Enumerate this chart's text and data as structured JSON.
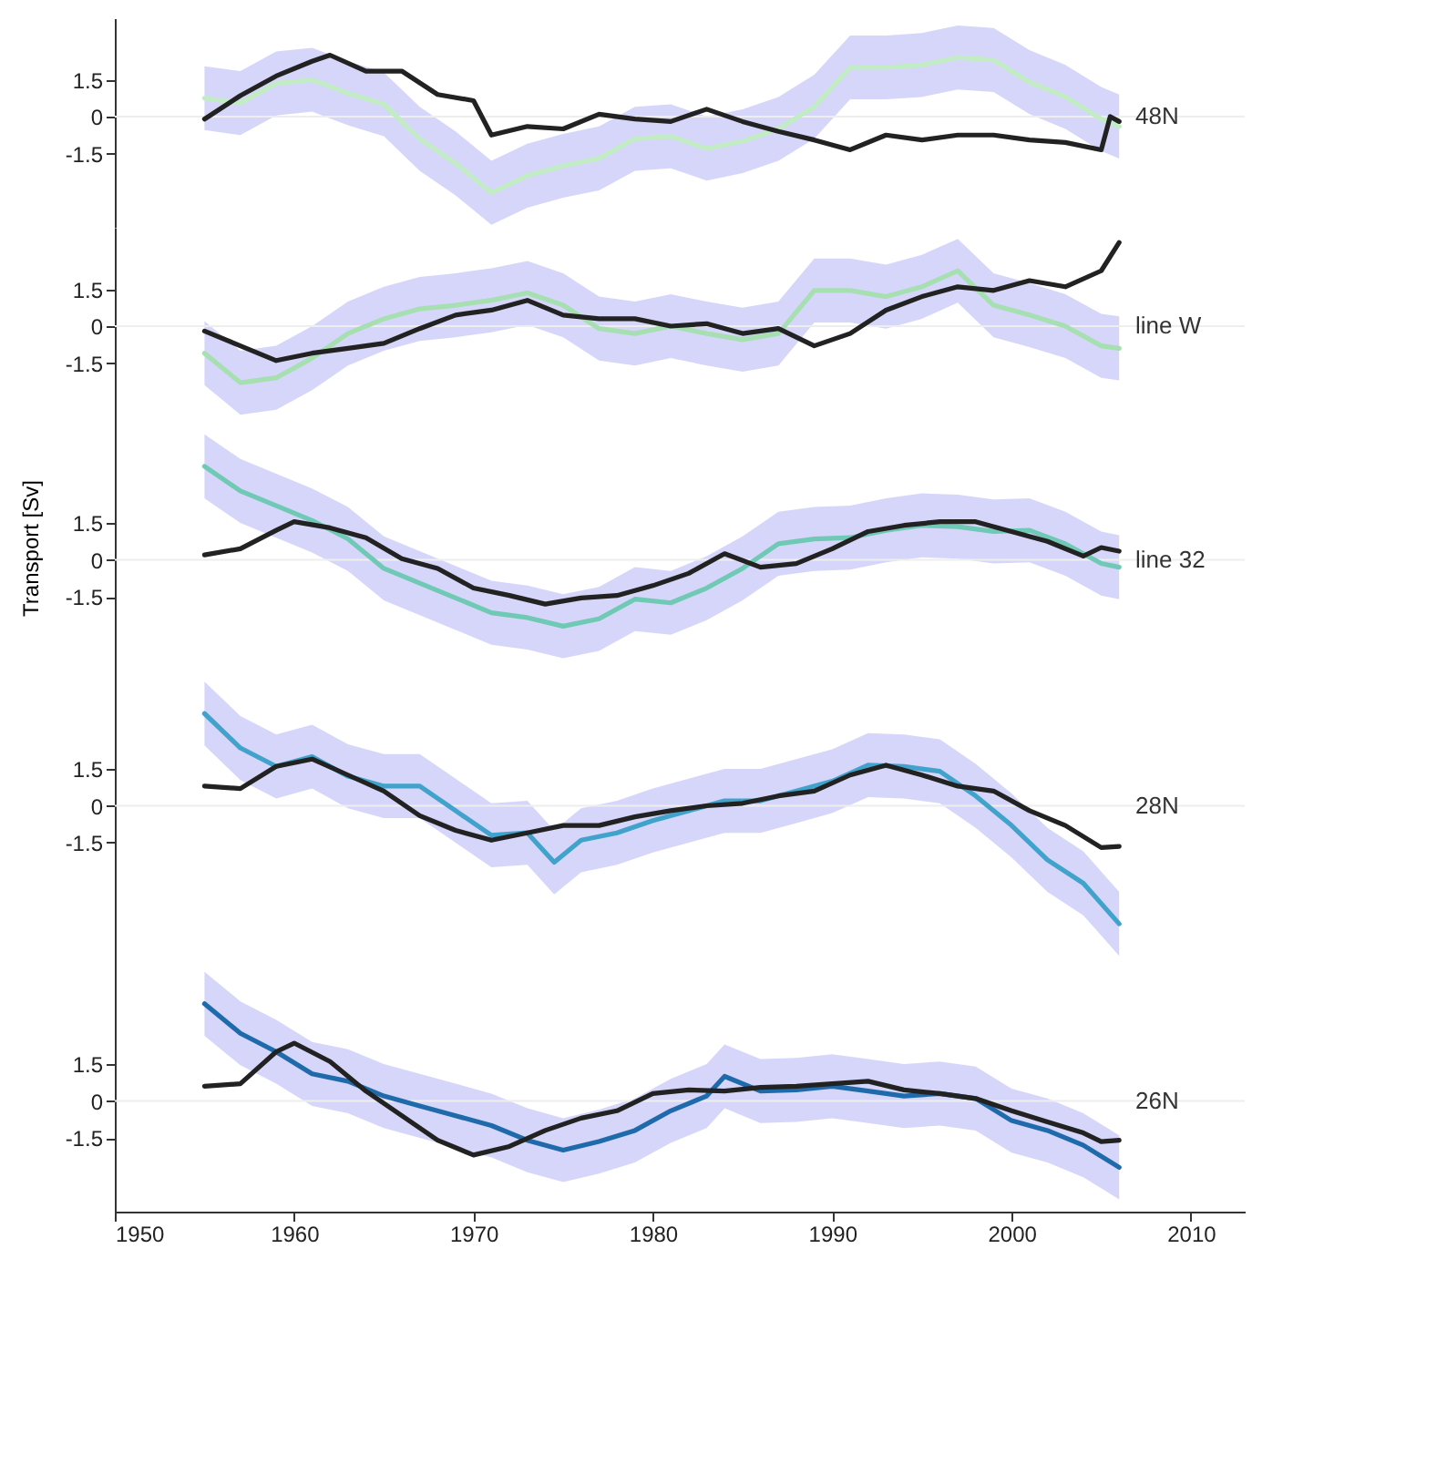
{
  "chart_data": [
    {
      "type": "line",
      "annotations": [
        "48N"
      ],
      "xlim": [
        1950,
        2013
      ],
      "xticks": [
        1950,
        1960,
        1970,
        1980,
        1990,
        2000,
        2010
      ],
      "ylim": [
        -4.5,
        4
      ],
      "yticks": [
        -1.5,
        0,
        1.5
      ],
      "tick_labels": "y",
      "ref_lines": [
        {
          "axis": "y",
          "value": 0,
          "color": "#eeeeee"
        }
      ],
      "series": [
        {
          "color": "#c2ecc4",
          "x": [
            1955,
            1957,
            1959,
            1961,
            1963,
            1965,
            1967,
            1969,
            1971,
            1973,
            1975,
            1977,
            1979,
            1981,
            1983,
            1985,
            1987,
            1989,
            1991,
            1993,
            1995,
            1997,
            1999,
            2001,
            2003,
            2005,
            2006
          ],
          "values": [
            0.75,
            0.55,
            1.35,
            1.5,
            0.95,
            0.5,
            -0.9,
            -1.9,
            -3.1,
            -2.4,
            -2.0,
            -1.7,
            -0.9,
            -0.8,
            -1.3,
            -1.0,
            -0.5,
            0.4,
            2.0,
            2.0,
            2.1,
            2.4,
            2.3,
            1.4,
            0.8,
            -0.1,
            -0.4
          ],
          "lower": [
            -0.55,
            -0.75,
            0.05,
            0.2,
            -0.35,
            -0.8,
            -2.2,
            -3.2,
            -4.4,
            -3.7,
            -3.3,
            -3.0,
            -2.2,
            -2.1,
            -2.6,
            -2.3,
            -1.8,
            -0.9,
            0.7,
            0.7,
            0.8,
            1.1,
            1.0,
            0.1,
            -0.5,
            -1.4,
            -1.7
          ],
          "upper": [
            2.05,
            1.85,
            2.65,
            2.8,
            2.25,
            1.8,
            0.4,
            -0.6,
            -1.8,
            -1.1,
            -0.7,
            -0.4,
            0.4,
            0.5,
            0.0,
            0.3,
            0.8,
            1.7,
            3.3,
            3.3,
            3.4,
            3.7,
            3.6,
            2.7,
            2.1,
            1.2,
            0.9
          ]
        },
        {
          "color": "#222222",
          "x": [
            1955,
            1957,
            1959,
            1961,
            1962,
            1964,
            1966,
            1968,
            1970,
            1971,
            1973,
            1975,
            1977,
            1979,
            1981,
            1983,
            1985,
            1987,
            1989,
            1991,
            1993,
            1995,
            1997,
            1999,
            2001,
            2003,
            2005,
            2005.5,
            2006
          ],
          "values": [
            -0.1,
            0.85,
            1.65,
            2.25,
            2.5,
            1.85,
            1.85,
            0.9,
            0.65,
            -0.75,
            -0.4,
            -0.5,
            0.1,
            -0.1,
            -0.2,
            0.3,
            -0.2,
            -0.6,
            -0.95,
            -1.35,
            -0.75,
            -0.95,
            -0.75,
            -0.75,
            -0.95,
            -1.05,
            -1.35,
            0,
            -0.2
          ]
        }
      ]
    },
    {
      "type": "line",
      "annotations": [
        "line W"
      ],
      "xlim": [
        1950,
        2013
      ],
      "xticks": [
        1950,
        1960,
        1970,
        1980,
        1990,
        2000,
        2010
      ],
      "ylim": [
        -4,
        4
      ],
      "yticks": [
        -1.5,
        0,
        1.5
      ],
      "tick_labels": "y",
      "ref_lines": [
        {
          "axis": "y",
          "value": 0,
          "color": "#eeeeee"
        }
      ],
      "series": [
        {
          "color": "#a6dfb0",
          "x": [
            1955,
            1957,
            1959,
            1961,
            1963,
            1965,
            1967,
            1969,
            1971,
            1973,
            1975,
            1977,
            1979,
            1981,
            1983,
            1985,
            1987,
            1989,
            1991,
            1993,
            1995,
            1997,
            1999,
            2001,
            2003,
            2005,
            2006
          ],
          "values": [
            -1.1,
            -2.3,
            -2.1,
            -1.3,
            -0.3,
            0.3,
            0.7,
            0.85,
            1.05,
            1.35,
            0.85,
            -0.1,
            -0.3,
            0,
            -0.3,
            -0.55,
            -0.3,
            1.45,
            1.45,
            1.2,
            1.6,
            2.25,
            0.85,
            0.45,
            0,
            -0.8,
            -0.9
          ],
          "lower": [
            -2.4,
            -3.6,
            -3.4,
            -2.6,
            -1.6,
            -1.0,
            -0.6,
            -0.45,
            -0.25,
            0.05,
            -0.45,
            -1.4,
            -1.6,
            -1.3,
            -1.6,
            -1.85,
            -1.6,
            0.15,
            0.15,
            -0.1,
            0.3,
            0.95,
            -0.45,
            -0.85,
            -1.3,
            -2.1,
            -2.2
          ],
          "upper": [
            0.2,
            -1.0,
            -0.8,
            0.0,
            1.0,
            1.6,
            2.0,
            2.15,
            2.35,
            2.65,
            2.15,
            1.2,
            1.0,
            1.3,
            1.0,
            0.75,
            1.0,
            2.75,
            2.75,
            2.5,
            2.9,
            3.55,
            2.15,
            1.75,
            1.3,
            0.5,
            0.4
          ]
        },
        {
          "color": "#222222",
          "x": [
            1955,
            1957,
            1959,
            1961,
            1963,
            1965,
            1967,
            1969,
            1971,
            1973,
            1975,
            1977,
            1979,
            1981,
            1983,
            1985,
            1987,
            1989,
            1991,
            1993,
            1995,
            1997,
            1999,
            2001,
            2003,
            2005,
            2006
          ],
          "values": [
            -0.2,
            -0.8,
            -1.4,
            -1.1,
            -0.9,
            -0.7,
            -0.1,
            0.45,
            0.65,
            1.05,
            0.45,
            0.3,
            0.3,
            0,
            0.1,
            -0.3,
            -0.1,
            -0.8,
            -0.3,
            0.65,
            1.2,
            1.6,
            1.45,
            1.85,
            1.6,
            2.25,
            3.4
          ]
        }
      ]
    },
    {
      "type": "line",
      "ylabel": "Transport [Sv]",
      "annotations": [
        "line 32"
      ],
      "xlim": [
        1950,
        2013
      ],
      "xticks": [
        1950,
        1960,
        1970,
        1980,
        1990,
        2000,
        2010
      ],
      "ylim": [
        -4.5,
        5.5
      ],
      "yticks": [
        -1.5,
        0,
        1.5
      ],
      "tick_labels": "y",
      "ref_lines": [
        {
          "axis": "y",
          "value": 0,
          "color": "#eeeeee"
        }
      ],
      "series": [
        {
          "color": "#6fc9b5",
          "x": [
            1955,
            1957,
            1959,
            1961,
            1963,
            1965,
            1967,
            1969,
            1971,
            1973,
            1975,
            1977,
            1979,
            1981,
            1983,
            1985,
            1987,
            1989,
            1991,
            1993,
            1995,
            1997,
            1999,
            2001,
            2003,
            2005,
            2006
          ],
          "values": [
            3.8,
            2.8,
            2.2,
            1.6,
            0.85,
            -0.35,
            -0.95,
            -1.55,
            -2.15,
            -2.35,
            -2.7,
            -2.4,
            -1.6,
            -1.75,
            -1.15,
            -0.35,
            0.65,
            0.85,
            0.9,
            1.2,
            1.4,
            1.35,
            1.15,
            1.2,
            0.65,
            -0.15,
            -0.3
          ],
          "lower": [
            2.5,
            1.5,
            0.9,
            0.3,
            -0.45,
            -1.65,
            -2.25,
            -2.85,
            -3.45,
            -3.65,
            -4.0,
            -3.7,
            -2.9,
            -3.05,
            -2.45,
            -1.65,
            -0.65,
            -0.45,
            -0.4,
            -0.1,
            0.1,
            0.05,
            -0.15,
            -0.1,
            -0.65,
            -1.45,
            -1.6
          ],
          "upper": [
            5.1,
            4.1,
            3.5,
            2.9,
            2.15,
            0.95,
            0.35,
            -0.25,
            -0.85,
            -1.05,
            -1.4,
            -1.1,
            -0.3,
            -0.45,
            0.15,
            0.95,
            1.95,
            2.15,
            2.2,
            2.5,
            2.7,
            2.65,
            2.45,
            2.5,
            1.95,
            1.15,
            1.0
          ]
        },
        {
          "color": "#222222",
          "x": [
            1955,
            1957,
            1959,
            1960,
            1962,
            1964,
            1966,
            1968,
            1970,
            1972,
            1974,
            1976,
            1978,
            1980,
            1982,
            1984,
            1986,
            1988,
            1990,
            1992,
            1994,
            1996,
            1998,
            2000,
            2002,
            2004,
            2005,
            2006
          ],
          "values": [
            0.2,
            0.45,
            1.2,
            1.55,
            1.3,
            0.9,
            0.05,
            -0.35,
            -1.15,
            -1.45,
            -1.8,
            -1.55,
            -1.45,
            -1.05,
            -0.55,
            0.25,
            -0.3,
            -0.15,
            0.45,
            1.15,
            1.4,
            1.55,
            1.55,
            1.15,
            0.75,
            0.15,
            0.5,
            0.35
          ]
        }
      ]
    },
    {
      "type": "line",
      "annotations": [
        "28N"
      ],
      "xlim": [
        1950,
        2013
      ],
      "xticks": [
        1950,
        1960,
        1970,
        1980,
        1990,
        2000,
        2010
      ],
      "ylim": [
        -6.5,
        5.5
      ],
      "yticks": [
        -1.5,
        0,
        1.5
      ],
      "tick_labels": "y",
      "ref_lines": [
        {
          "axis": "y",
          "value": 0,
          "color": "#eeeeee"
        }
      ],
      "series": [
        {
          "color": "#41a3cb",
          "x": [
            1955,
            1957,
            1959,
            1961,
            1963,
            1965,
            1967,
            1969,
            1971,
            1973,
            1974.5,
            1976,
            1978,
            1980,
            1982,
            1984,
            1986,
            1988,
            1990,
            1992,
            1994,
            1996,
            1998,
            2000,
            2002,
            2004,
            2006
          ],
          "values": [
            3.75,
            2.35,
            1.6,
            2.0,
            1.2,
            0.8,
            0.8,
            -0.2,
            -1.2,
            -1.1,
            -2.3,
            -1.4,
            -1.1,
            -0.6,
            -0.2,
            0.2,
            0.2,
            0.6,
            1.0,
            1.65,
            1.6,
            1.4,
            0.4,
            -0.8,
            -2.2,
            -3.15,
            -4.8
          ],
          "lower": [
            2.45,
            1.05,
            0.3,
            0.7,
            -0.1,
            -0.5,
            -0.5,
            -1.5,
            -2.5,
            -2.4,
            -3.6,
            -2.7,
            -2.4,
            -1.9,
            -1.5,
            -1.1,
            -1.1,
            -0.7,
            -0.3,
            0.35,
            0.3,
            0.1,
            -0.9,
            -2.1,
            -3.5,
            -4.45,
            -6.1
          ],
          "upper": [
            5.05,
            3.65,
            2.9,
            3.3,
            2.5,
            2.1,
            2.1,
            1.1,
            0.1,
            0.2,
            -1.0,
            -0.1,
            0.2,
            0.7,
            1.1,
            1.5,
            1.5,
            1.9,
            2.3,
            2.95,
            2.9,
            2.7,
            1.7,
            0.5,
            -0.9,
            -1.85,
            -3.5
          ]
        },
        {
          "color": "#222222",
          "x": [
            1955,
            1957,
            1959,
            1961,
            1963,
            1965,
            1967,
            1969,
            1971,
            1973,
            1975,
            1977,
            1979,
            1981,
            1983,
            1985,
            1987,
            1989,
            1991,
            1993,
            1995,
            1997,
            1999,
            2001,
            2003,
            2005,
            2006
          ],
          "values": [
            0.8,
            0.7,
            1.6,
            1.9,
            1.25,
            0.6,
            -0.4,
            -1.0,
            -1.4,
            -1.1,
            -0.8,
            -0.8,
            -0.45,
            -0.2,
            0,
            0.1,
            0.4,
            0.6,
            1.25,
            1.65,
            1.25,
            0.8,
            0.6,
            -0.2,
            -0.8,
            -1.7,
            -1.65
          ]
        }
      ]
    },
    {
      "type": "line",
      "annotations": [
        "26N"
      ],
      "xlim": [
        1950,
        2013
      ],
      "xticks": [
        1950,
        1960,
        1970,
        1980,
        1990,
        2000,
        2010
      ],
      "ylim": [
        -4.5,
        5.5
      ],
      "yticks": [
        -1.5,
        0,
        1.5
      ],
      "ref_lines": [
        {
          "axis": "y",
          "value": 0,
          "color": "#eeeeee"
        }
      ],
      "series": [
        {
          "color": "#1f6aab",
          "x": [
            1955,
            1957,
            1959,
            1961,
            1963,
            1965,
            1967,
            1969,
            1971,
            1973,
            1975,
            1977,
            1979,
            1981,
            1983,
            1984,
            1986,
            1988,
            1990,
            1992,
            1994,
            1996,
            1998,
            2000,
            2002,
            2004,
            2006
          ],
          "values": [
            3.95,
            2.75,
            2.0,
            1.1,
            0.8,
            0.2,
            -0.2,
            -0.6,
            -1.0,
            -1.6,
            -2.0,
            -1.65,
            -1.2,
            -0.4,
            0.2,
            1.0,
            0.4,
            0.45,
            0.6,
            0.4,
            0.2,
            0.3,
            0.1,
            -0.8,
            -1.2,
            -1.8,
            -2.7
          ],
          "lower": [
            2.65,
            1.45,
            0.7,
            -0.2,
            -0.5,
            -1.1,
            -1.5,
            -1.9,
            -2.3,
            -2.9,
            -3.3,
            -2.95,
            -2.5,
            -1.7,
            -1.1,
            -0.3,
            -0.9,
            -0.85,
            -0.7,
            -0.9,
            -1.1,
            -1.0,
            -1.2,
            -2.1,
            -2.5,
            -3.1,
            -4.0
          ],
          "upper": [
            5.25,
            4.05,
            3.3,
            2.4,
            2.1,
            1.5,
            1.1,
            0.7,
            0.3,
            -0.3,
            -0.7,
            -0.35,
            0.1,
            0.9,
            1.5,
            2.3,
            1.7,
            1.75,
            1.9,
            1.7,
            1.5,
            1.6,
            1.4,
            0.5,
            0.1,
            -0.5,
            -1.4
          ]
        },
        {
          "color": "#222222",
          "x": [
            1955,
            1957,
            1959,
            1960,
            1962,
            1964,
            1966,
            1968,
            1970,
            1972,
            1974,
            1976,
            1978,
            1980,
            1982,
            1984,
            1986,
            1988,
            1990,
            1992,
            1994,
            1996,
            1998,
            2000,
            2002,
            2004,
            2005,
            2006
          ],
          "values": [
            0.6,
            0.7,
            2.0,
            2.35,
            1.6,
            0.4,
            -0.6,
            -1.6,
            -2.2,
            -1.85,
            -1.2,
            -0.7,
            -0.4,
            0.3,
            0.45,
            0.4,
            0.55,
            0.6,
            0.7,
            0.8,
            0.45,
            0.3,
            0.1,
            -0.4,
            -0.85,
            -1.3,
            -1.65,
            -1.6
          ]
        }
      ]
    }
  ]
}
